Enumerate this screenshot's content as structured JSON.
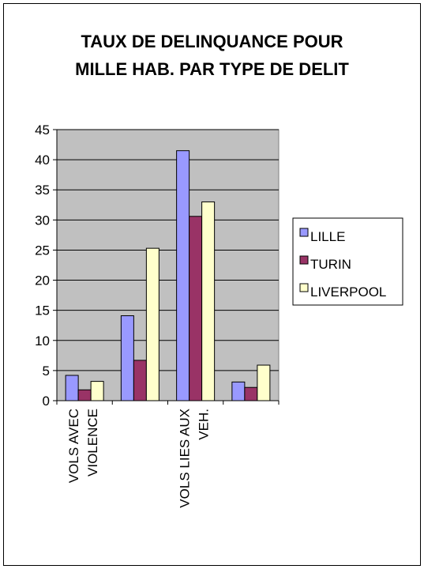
{
  "chart_data": {
    "type": "bar",
    "title_lines": [
      "TAUX DE DELINQUANCE POUR",
      "MILLE HAB. PAR TYPE DE DELIT"
    ],
    "categories": [
      [
        "VOLS AVEC",
        "VIOLENCE"
      ],
      [
        "",
        ""
      ],
      [
        "VOLS LIES AUX",
        "VEH."
      ],
      [
        "",
        ""
      ]
    ],
    "series": [
      {
        "name": "LILLE",
        "color": "#9999ff",
        "values": [
          4.2,
          14.1,
          41.5,
          3.1
        ]
      },
      {
        "name": "TURIN",
        "color": "#993366",
        "values": [
          1.8,
          6.7,
          30.6,
          2.2
        ]
      },
      {
        "name": "LIVERPOOL",
        "color": "#ffffcc",
        "values": [
          3.2,
          25.3,
          33.0,
          5.9
        ]
      }
    ],
    "ylim": [
      0,
      45
    ],
    "yticks": [
      0,
      5,
      10,
      15,
      20,
      25,
      30,
      35,
      40,
      45
    ],
    "plot_background": "#c0c0c0",
    "grid": true,
    "legend_position": "right"
  }
}
